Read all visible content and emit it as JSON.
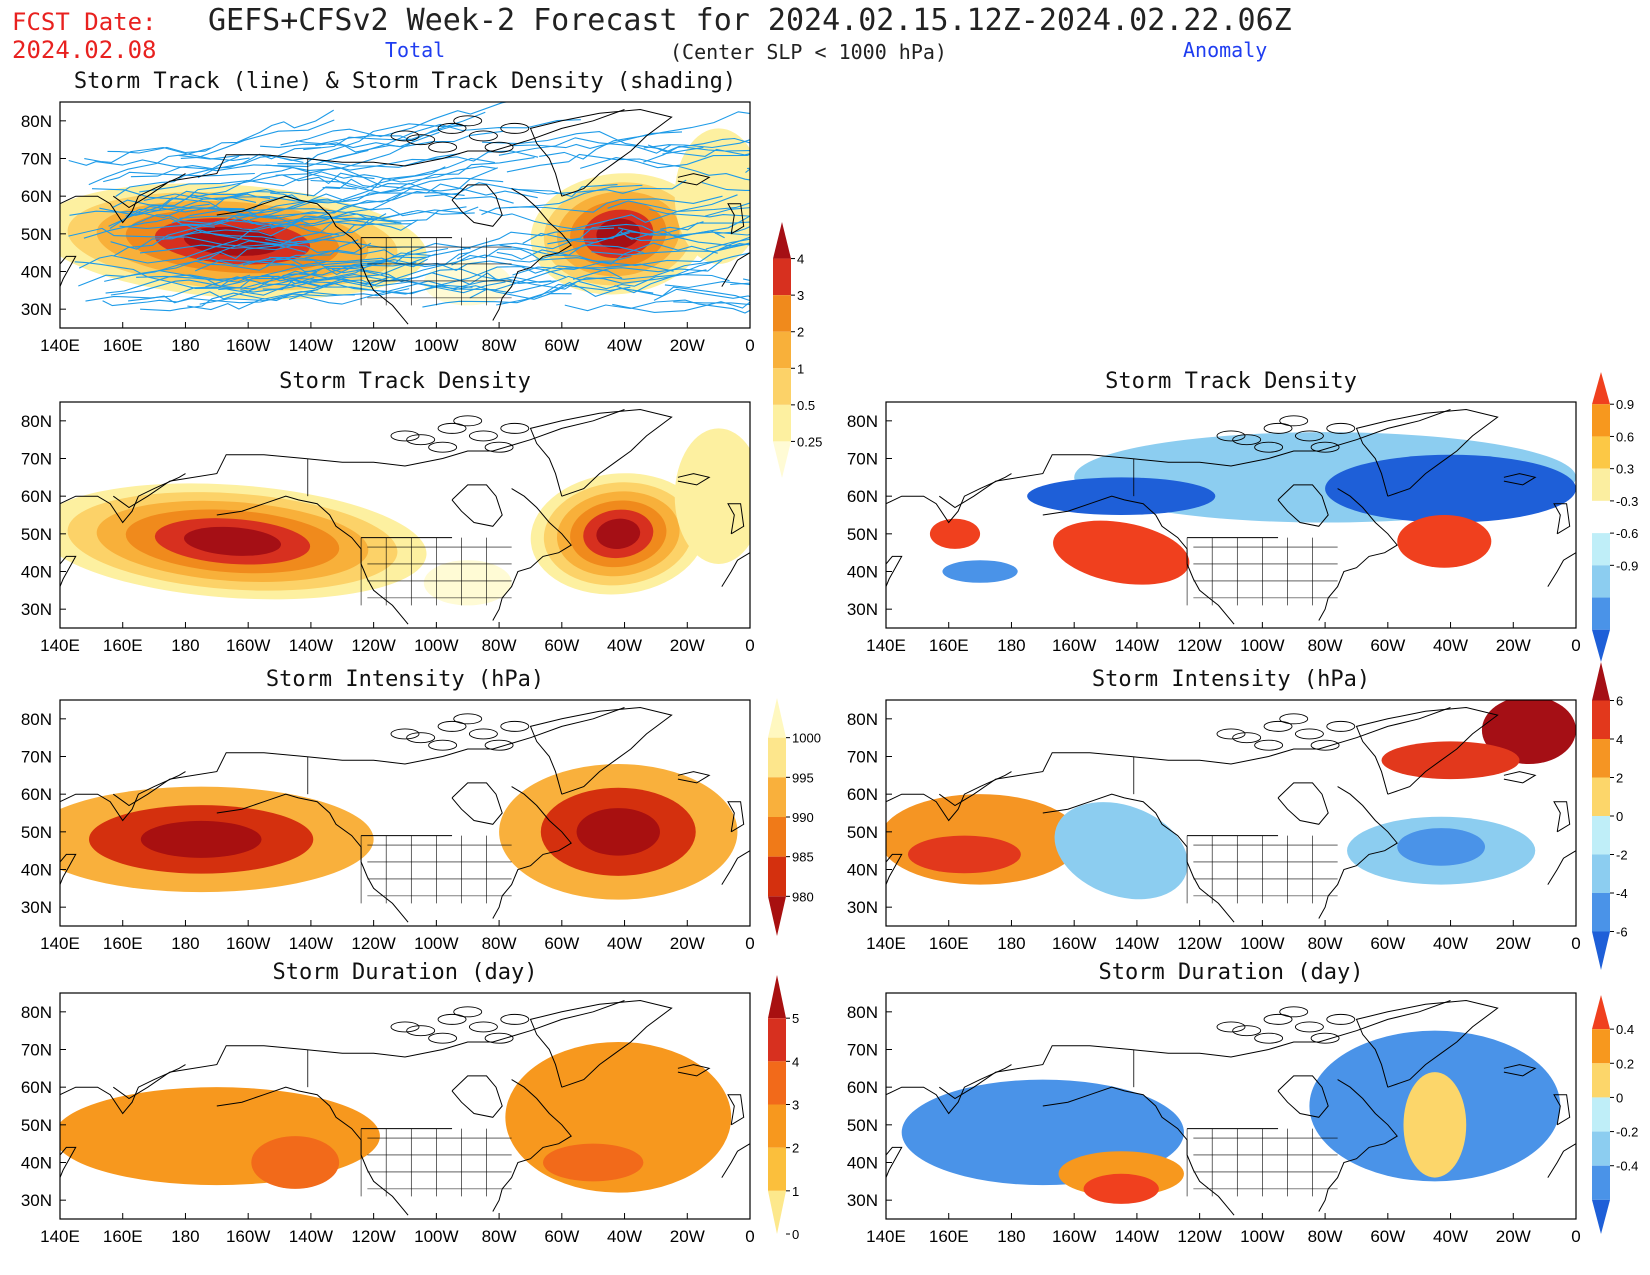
{
  "header": {
    "fcst_label": "FCST Date:",
    "fcst_date": "2024.02.08",
    "title": "GEFS+CFSv2 Week-2 Forecast for 2024.02.15.12Z-2024.02.22.06Z",
    "subtitle": "(Center SLP < 1000 hPa)",
    "total_label": "Total",
    "anomaly_label": "Anomaly",
    "red": "#e8211f",
    "blue": "#1f3df0"
  },
  "axes": {
    "x_ticks": [
      "140E",
      "160E",
      "180",
      "160W",
      "140W",
      "120W",
      "100W",
      "80W",
      "60W",
      "40W",
      "20W",
      "0"
    ],
    "y_ticks": [
      "80N",
      "70N",
      "60N",
      "50N",
      "40N",
      "30N"
    ]
  },
  "colorbars": {
    "density_total": {
      "labels": [
        "4",
        "3",
        "2",
        "1",
        "0.5",
        "0.25"
      ],
      "colors": [
        "#a50f15",
        "#d7301f",
        "#f08a1c",
        "#f8b03a",
        "#fcd268",
        "#fdf0a0",
        "#fffbd5"
      ]
    },
    "density_anom": {
      "labels": [
        "0.9",
        "0.6",
        "0.3",
        "-0.3",
        "-0.6",
        "-0.9"
      ],
      "colors": [
        "#f0401e",
        "#f7981e",
        "#fcc845",
        "#fbeea0",
        "#ffffff",
        "#bfeef8",
        "#8ccdf0",
        "#4a93e8",
        "#1e5fd8"
      ]
    },
    "intensity_total": {
      "labels": [
        "1000",
        "995",
        "990",
        "985",
        "980"
      ],
      "colors": [
        "#fff8c0",
        "#fde68c",
        "#f9b03c",
        "#f07a18",
        "#d4300e",
        "#a81010"
      ]
    },
    "intensity_anom": {
      "labels": [
        "6",
        "4",
        "2",
        "0",
        "-2",
        "-4",
        "-6"
      ],
      "colors": [
        "#a50f15",
        "#e2381c",
        "#f59523",
        "#fcd66a",
        "#bfeef8",
        "#8ccdf0",
        "#4a93e8",
        "#1e5fd8"
      ]
    },
    "duration_total": {
      "labels": [
        "5",
        "4",
        "3",
        "2",
        "1",
        "0"
      ],
      "colors": [
        "#a81010",
        "#d7301f",
        "#f26a1a",
        "#f7981e",
        "#fbbf3c",
        "#fde88c"
      ]
    },
    "duration_anom": {
      "labels": [
        "0.4",
        "0.2",
        "0",
        "-0.2",
        "-0.4"
      ],
      "colors": [
        "#f0401e",
        "#f7981e",
        "#fcd66a",
        "#bfeef8",
        "#8ccdf0",
        "#4a93e8",
        "#1e5fd8"
      ]
    }
  },
  "panels": [
    {
      "key": "track",
      "title": "Storm Track (line) & Storm Track Density (shading)"
    },
    {
      "key": "density_total",
      "title": "Storm Track Density"
    },
    {
      "key": "density_anom",
      "title": "Storm Track Density"
    },
    {
      "key": "intensity_total",
      "title": "Storm Intensity (hPa)"
    },
    {
      "key": "intensity_anom",
      "title": "Storm Intensity (hPa)"
    },
    {
      "key": "duration_total",
      "title": "Storm Duration (day)"
    },
    {
      "key": "duration_anom",
      "title": "Storm Duration (day)"
    }
  ]
}
